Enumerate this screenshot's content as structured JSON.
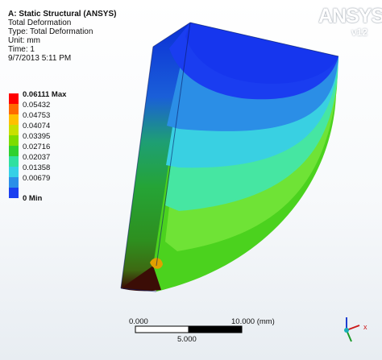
{
  "header": {
    "title": "A: Static Structural (ANSYS)",
    "result": "Total Deformation",
    "type": "Type: Total Deformation",
    "unit": "Unit: mm",
    "time": "Time: 1",
    "date": "9/7/2013 5:11 PM"
  },
  "legend": {
    "max_label": "0.06111 Max",
    "min_label": "0 Min",
    "values": [
      "0.05432",
      "0.04753",
      "0.04074",
      "0.03395",
      "0.02716",
      "0.02037",
      "0.01358",
      "0.00679"
    ],
    "colors": [
      "#ff0000",
      "#ff6a00",
      "#ffc000",
      "#c8e000",
      "#7ddc00",
      "#2fd12f",
      "#2fe0a0",
      "#35d0e6",
      "#2b8fe8",
      "#1a3ff0"
    ]
  },
  "logo": {
    "brand": "ANSYS",
    "version": "v12"
  },
  "scale_bar": {
    "left_label": "0.000",
    "right_label": "10.000 (mm)",
    "mid_label": "5.000"
  }
}
